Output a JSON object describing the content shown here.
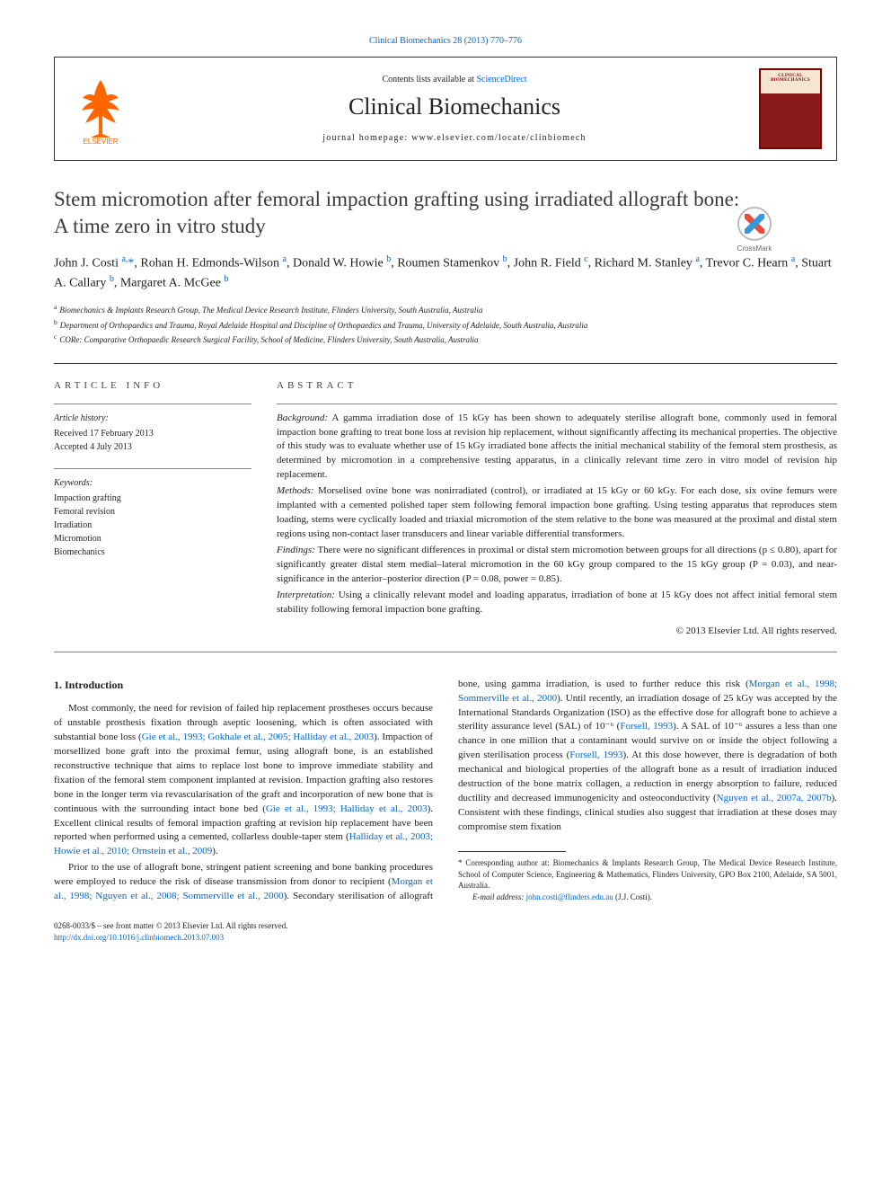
{
  "top_link": {
    "text": "Clinical Biomechanics 28 (2013) 770–776"
  },
  "header": {
    "contents_prefix": "Contents lists available at ",
    "contents_link": "ScienceDirect",
    "journal_title": "Clinical Biomechanics",
    "homepage_prefix": "journal homepage: ",
    "homepage_url": "www.elsevier.com/locate/clinbiomech",
    "cover_label": "CLINICAL BIOMECHANICS"
  },
  "crossmark_label": "CrossMark",
  "article": {
    "title": "Stem micromotion after femoral impaction grafting using irradiated allograft bone: A time zero in vitro study",
    "authors_html": "John J. Costi <sup>a,</sup><span class='ast'>*</span>, Rohan H. Edmonds-Wilson <sup>a</sup>, Donald W. Howie <sup>b</sup>, Roumen Stamenkov <sup>b</sup>, John R. Field <sup>c</sup>, Richard M. Stanley <sup>a</sup>, Trevor C. Hearn <sup>a</sup>, Stuart A. Callary <sup>b</sup>, Margaret A. McGee <sup>b</sup>",
    "affiliations": [
      {
        "sup": "a",
        "text": "Biomechanics & Implants Research Group, The Medical Device Research Institute, Flinders University, South Australia, Australia"
      },
      {
        "sup": "b",
        "text": "Department of Orthopaedics and Trauma, Royal Adelaide Hospital and Discipline of Orthopaedics and Trauma, University of Adelaide, South Australia, Australia"
      },
      {
        "sup": "c",
        "text": "CORe: Comparative Orthopaedic Research Surgical Facility, School of Medicine, Flinders University, South Australia, Australia"
      }
    ]
  },
  "article_info": {
    "label": "ARTICLE INFO",
    "history_label": "Article history:",
    "received": "Received 17 February 2013",
    "accepted": "Accepted 4 July 2013",
    "keywords_label": "Keywords:",
    "keywords": [
      "Impaction grafting",
      "Femoral revision",
      "Irradiation",
      "Micromotion",
      "Biomechanics"
    ]
  },
  "abstract": {
    "label": "ABSTRACT",
    "background_label": "Background:",
    "background": "A gamma irradiation dose of 15 kGy has been shown to adequately sterilise allograft bone, commonly used in femoral impaction bone grafting to treat bone loss at revision hip replacement, without significantly affecting its mechanical properties. The objective of this study was to evaluate whether use of 15 kGy irradiated bone affects the initial mechanical stability of the femoral stem prosthesis, as determined by micromotion in a comprehensive testing apparatus, in a clinically relevant time zero in vitro model of revision hip replacement.",
    "methods_label": "Methods:",
    "methods": "Morselised ovine bone was nonirradiated (control), or irradiated at 15 kGy or 60 kGy. For each dose, six ovine femurs were implanted with a cemented polished taper stem following femoral impaction bone grafting. Using testing apparatus that reproduces stem loading, stems were cyclically loaded and triaxial micromotion of the stem relative to the bone was measured at the proximal and distal stem regions using non-contact laser transducers and linear variable differential transformers.",
    "findings_label": "Findings:",
    "findings": "There were no significant differences in proximal or distal stem micromotion between groups for all directions (p ≤ 0.80), apart for significantly greater distal stem medial–lateral micromotion in the 60 kGy group compared to the 15 kGy group (P = 0.03), and near-significance in the anterior–posterior direction (P = 0.08, power = 0.85).",
    "interpretation_label": "Interpretation:",
    "interpretation": "Using a clinically relevant model and loading apparatus, irradiation of bone at 15 kGy does not affect initial femoral stem stability following femoral impaction bone grafting.",
    "copyright": "© 2013 Elsevier Ltd. All rights reserved."
  },
  "body": {
    "heading": "1. Introduction",
    "para1_pre": "Most commonly, the need for revision of failed hip replacement prostheses occurs because of unstable prosthesis fixation through aseptic loosening, which is often associated with substantial bone loss (",
    "para1_link1": "Gie et al., 1993; Gokhale et al., 2005; Halliday et al., 2003",
    "para1_mid": "). Impaction of morsellized bone graft into the proximal femur, using allograft bone, is an established reconstructive technique that aims to replace lost bone to improve immediate stability and fixation of the femoral stem component implanted at revision. Impaction grafting also restores bone in the longer term via revascularisation of the graft and incorporation of new bone that is continuous with the surrounding intact bone bed (",
    "para1_link2": "Gie et al., 1993; Halliday et al., 2003",
    "para1_post": "). Excellent clinical results of femoral impaction grafting at revision hip replacement have been reported when performed using a cemented, collarless",
    "para1b_pre": "double-taper stem (",
    "para1b_link": "Halliday et al., 2003; Howie et al., 2010; Ornstein et al., 2009",
    "para1b_post": ").",
    "para2_pre": "Prior to the use of allograft bone, stringent patient screening and bone banking procedures were employed to reduce the risk of disease transmission from donor to recipient (",
    "para2_link1": "Morgan et al., 1998; Nguyen et al., 2008; Sommerville et al., 2000",
    "para2_mid1": "). Secondary sterilisation of allograft bone, using gamma irradiation, is used to further reduce this risk (",
    "para2_link2": "Morgan et al., 1998; Sommerville et al., 2000",
    "para2_mid2": "). Until recently, an irradiation dosage of 25 kGy was accepted by the International Standards Organization (ISO) as the effective dose for allograft bone to achieve a sterility assurance level (SAL) of 10⁻⁶ (",
    "para2_link3": "Forsell, 1993",
    "para2_mid3": "). A SAL of 10⁻⁶ assures a less than one chance in one million that a contaminant would survive on or inside the object following a given sterilisation process (",
    "para2_link4": "Forsell, 1993",
    "para2_mid4": "). At this dose however, there is degradation of both mechanical and biological properties of the allograft bone as a result of irradiation induced destruction of the bone matrix collagen, a reduction in energy absorption to failure, reduced ductility and decreased immunogenicity and osteoconductivity (",
    "para2_link5": "Nguyen et al., 2007a, 2007b",
    "para2_post": "). Consistent with these findings, clinical studies also suggest that irradiation at these doses may compromise stem fixation"
  },
  "footnotes": {
    "corr_marker": "*",
    "corr_text": "Corresponding author at: Biomechanics & Implants Research Group, The Medical Device Research Institute, School of Computer Science, Engineering & Mathematics, Flinders University, GPO Box 2100, Adelaide, SA 5001, Australia.",
    "email_label": "E-mail address: ",
    "email": "john.costi@flinders.edu.au",
    "email_suffix": " (J.J. Costi)."
  },
  "bottom": {
    "line1": "0268-0033/$ – see front matter © 2013 Elsevier Ltd. All rights reserved.",
    "doi": "http://dx.doi.org/10.1016/j.clinbiomech.2013.07.003"
  },
  "colors": {
    "link": "#0066cc",
    "elsevier_orange": "#ff6600",
    "cover_red": "#8b1a1a"
  }
}
